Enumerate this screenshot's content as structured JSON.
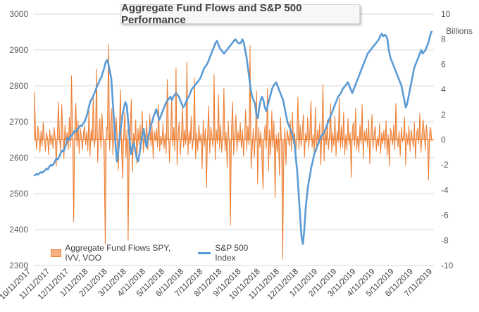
{
  "chart_data": {
    "type": "line",
    "title": "Aggregate Fund Flows and S&P 500 Performance",
    "x_tick_labels": [
      "10/11/2017",
      "11/11/2017",
      "12/11/2017",
      "1/11/2018",
      "2/11/2018",
      "3/11/2018",
      "4/11/2018",
      "5/11/2018",
      "6/11/2018",
      "7/11/2018",
      "8/11/2018",
      "9/11/2018",
      "10/11/2018",
      "11/11/2018",
      "12/11/2018",
      "1/11/2019",
      "2/11/2019",
      "3/11/2019",
      "4/11/2019",
      "5/11/2019",
      "6/11/2019",
      "7/11/2019"
    ],
    "y_left": {
      "min": 2300,
      "max": 3000,
      "ticks": [
        "2300",
        "2400",
        "2500",
        "2600",
        "2700",
        "2800",
        "2900",
        "3000"
      ]
    },
    "y_right": {
      "label": "Billions",
      "min": -10,
      "max": 10,
      "ticks": [
        "-10",
        "-8",
        "-6",
        "-4",
        "-2",
        "0",
        "2",
        "4",
        "6",
        "8",
        "10"
      ]
    },
    "legend_position": "bottom-left",
    "series": [
      {
        "name": "Aggregate Fund Flows SPY, IVV, VOO",
        "axis": "right",
        "type": "area",
        "color": "#ed7d31",
        "fill": "#f4b183",
        "values": [
          3.8,
          0.3,
          -0.8,
          1.1,
          0.5,
          -1.0,
          0.7,
          -0.5,
          1.4,
          0.2,
          -0.9,
          0.6,
          0.1,
          -1.2,
          0.8,
          -0.4,
          0.4,
          -0.7,
          1.0,
          0.2,
          -2.1,
          0.5,
          3.0,
          0.1,
          -0.9,
          2.8,
          0.6,
          -1.5,
          1.2,
          -0.2,
          0.6,
          -0.8,
          1.8,
          -0.6,
          5.1,
          0.4,
          -6.5,
          1.0,
          2.9,
          -0.5,
          1.5,
          -1.1,
          0.9,
          0.3,
          -0.8,
          0.6,
          1.1,
          -0.4,
          0.7,
          -0.9,
          2.4,
          -1.3,
          0.8,
          -0.2,
          3.5,
          -0.6,
          0.2,
          5.6,
          -1.8,
          0.5,
          1.7,
          -0.7,
          2.1,
          0.4,
          -1.6,
          -8.3,
          1.0,
          0.9,
          7.6,
          -0.8,
          1.3,
          2.5,
          -1.2,
          1.0,
          -0.5,
          1.8,
          0.2,
          -2.4,
          1.1,
          4.0,
          -0.9,
          -3.1,
          0.6,
          2.2,
          -1.4,
          0.8,
          -8.0,
          -1.0,
          1.2,
          3.2,
          -2.6,
          0.5,
          -0.3,
          1.6,
          -1.9,
          0.9,
          -0.4,
          1.2,
          -0.7,
          2.3,
          -1.0,
          0.5,
          -0.2,
          1.5,
          -0.8,
          0.4,
          2.0,
          -0.5,
          1.1,
          -1.5,
          0.7,
          -0.1,
          0.9,
          -0.6,
          2.8,
          -0.9,
          0.3,
          -0.4,
          1.3,
          -0.7,
          0.5,
          -1.1,
          4.8,
          0.9,
          -1.8,
          0.4,
          3.2,
          -0.5,
          1.0,
          -0.9,
          5.7,
          -2.0,
          0.6,
          1.4,
          -1.2,
          0.3,
          2.6,
          -0.6,
          0.8,
          -0.4,
          6.2,
          -1.2,
          0.7,
          -0.3,
          1.9,
          -0.8,
          0.2,
          4.9,
          -1.5,
          0.6,
          -0.9,
          1.2,
          -0.2,
          0.5,
          -2.3,
          1.6,
          -0.5,
          0.9,
          -3.8,
          0.4,
          2.7,
          -1.1,
          1.0,
          0.3,
          -0.6,
          5.2,
          -1.6,
          0.8,
          -0.3,
          3.6,
          -0.7,
          1.2,
          -1.0,
          0.4,
          4.1,
          -0.9,
          0.6,
          -2.2,
          1.5,
          -0.5,
          -6.8,
          0.9,
          3.0,
          -1.2,
          0.5,
          2.0,
          -0.9,
          0.7,
          -0.2,
          1.4,
          -0.6,
          0.8,
          -1.3,
          0.3,
          2.4,
          -0.8,
          1.1,
          -0.4,
          7.5,
          -2.3,
          -0.7,
          0.9,
          -1.4,
          0.6,
          3.9,
          -3.5,
          1.0,
          -0.6,
          0.7,
          -1.8,
          -3.9,
          0.5,
          1.2,
          -0.7,
          4.1,
          -2.5,
          0.8,
          -1.2,
          2.3,
          -0.6,
          1.5,
          -4.6,
          0.4,
          -1.0,
          0.6,
          -2.8,
          1.8,
          -0.4,
          -9.5,
          -1.3,
          1.0,
          -2.0,
          0.8,
          0.3,
          -0.5,
          1.5,
          -0.9,
          2.2,
          -0.3,
          0.6,
          -1.2,
          0.4,
          3.4,
          -0.8,
          1.2,
          -0.5,
          0.7,
          2.0,
          -1.4,
          0.5,
          -0.2,
          1.8,
          -0.7,
          0.9,
          3.1,
          -0.6,
          0.4,
          -1.1,
          2.6,
          -0.9,
          0.8,
          -0.3,
          1.3,
          -2.0,
          0.5,
          4.4,
          -1.7,
          0.9,
          -0.4,
          1.6,
          -0.8,
          0.3,
          2.9,
          -1.0,
          0.6,
          -0.5,
          1.9,
          -1.3,
          0.7,
          -0.2,
          3.3,
          -0.7,
          1.1,
          -0.6,
          2.2,
          -1.2,
          0.4,
          -0.8,
          1.7,
          -0.4,
          0.6,
          -3.0,
          0.9,
          1.4,
          -0.5,
          2.5,
          -0.8,
          0.3,
          -1.0,
          1.2,
          -0.3,
          2.8,
          -1.5,
          0.7,
          -0.2,
          0.9,
          -0.6,
          1.6,
          -1.9,
          0.4,
          2.0,
          -0.7,
          0.5,
          1.1,
          -0.9,
          0.2,
          -0.5,
          1.3,
          -1.1,
          0.6,
          -0.3,
          0.8,
          -0.7,
          1.5,
          -1.2,
          0.4,
          -2.1,
          0.9,
          0.5,
          -0.4,
          1.2,
          -0.8,
          2.9,
          0.3,
          -0.6,
          0.7,
          -1.3,
          1.0,
          -0.2,
          0.4,
          1.8,
          -2.0,
          0.6,
          -0.4,
          1.1,
          -0.9,
          0.8,
          0.2,
          -0.6,
          1.4,
          -1.5,
          0.5,
          0.9,
          -0.3,
          2.1,
          -1.0,
          0.4,
          1.6,
          0.7,
          -0.8,
          1.2,
          0.3,
          -3.2,
          0.6,
          1.0,
          -0.1
        ],
        "x_range": [
          "10/11/2017",
          "6/28/2019"
        ]
      },
      {
        "name": "S&P 500 Index",
        "axis": "left",
        "type": "line",
        "color": "#5b9bd5",
        "values": [
          2550,
          2552,
          2555,
          2553,
          2557,
          2560,
          2558,
          2562,
          2565,
          2570,
          2568,
          2575,
          2580,
          2578,
          2582,
          2590,
          2598,
          2595,
          2603,
          2612,
          2620,
          2618,
          2626,
          2640,
          2655,
          2650,
          2660,
          2662,
          2668,
          2675,
          2672,
          2680,
          2684,
          2690,
          2688,
          2695,
          2700,
          2710,
          2722,
          2740,
          2755,
          2763,
          2770,
          2780,
          2790,
          2800,
          2808,
          2818,
          2825,
          2838,
          2850,
          2866,
          2872,
          2860,
          2840,
          2820,
          2760,
          2700,
          2640,
          2590,
          2620,
          2660,
          2690,
          2720,
          2740,
          2755,
          2745,
          2700,
          2650,
          2610,
          2630,
          2640,
          2620,
          2600,
          2590,
          2610,
          2640,
          2660,
          2680,
          2650,
          2630,
          2655,
          2670,
          2690,
          2700,
          2715,
          2725,
          2735,
          2720,
          2705,
          2715,
          2725,
          2735,
          2745,
          2755,
          2760,
          2765,
          2770,
          2760,
          2770,
          2775,
          2780,
          2775,
          2770,
          2760,
          2750,
          2740,
          2745,
          2755,
          2765,
          2770,
          2780,
          2790,
          2795,
          2800,
          2805,
          2810,
          2815,
          2820,
          2830,
          2840,
          2850,
          2855,
          2860,
          2870,
          2880,
          2890,
          2900,
          2910,
          2920,
          2925,
          2915,
          2905,
          2900,
          2895,
          2890,
          2895,
          2900,
          2905,
          2910,
          2915,
          2920,
          2925,
          2930,
          2925,
          2920,
          2918,
          2920,
          2930,
          2922,
          2900,
          2880,
          2850,
          2820,
          2790,
          2770,
          2760,
          2750,
          2720,
          2710,
          2740,
          2760,
          2770,
          2760,
          2740,
          2730,
          2745,
          2760,
          2775,
          2790,
          2800,
          2805,
          2810,
          2800,
          2790,
          2780,
          2770,
          2760,
          2740,
          2720,
          2700,
          2690,
          2680,
          2670,
          2660,
          2640,
          2600,
          2560,
          2500,
          2440,
          2380,
          2360,
          2400,
          2460,
          2500,
          2530,
          2550,
          2575,
          2590,
          2610,
          2620,
          2630,
          2640,
          2650,
          2660,
          2665,
          2670,
          2680,
          2690,
          2700,
          2710,
          2720,
          2730,
          2740,
          2750,
          2760,
          2770,
          2775,
          2780,
          2790,
          2795,
          2800,
          2805,
          2810,
          2800,
          2790,
          2780,
          2790,
          2800,
          2810,
          2820,
          2830,
          2840,
          2850,
          2860,
          2870,
          2880,
          2890,
          2895,
          2900,
          2905,
          2910,
          2915,
          2920,
          2925,
          2930,
          2940,
          2945,
          2938,
          2942,
          2940,
          2930,
          2900,
          2880,
          2870,
          2860,
          2850,
          2840,
          2830,
          2820,
          2810,
          2800,
          2780,
          2760,
          2740,
          2750,
          2770,
          2790,
          2810,
          2830,
          2850,
          2860,
          2870,
          2880,
          2890,
          2900,
          2890,
          2895,
          2900,
          2910,
          2920,
          2935,
          2950,
          2952
        ]
      }
    ]
  }
}
